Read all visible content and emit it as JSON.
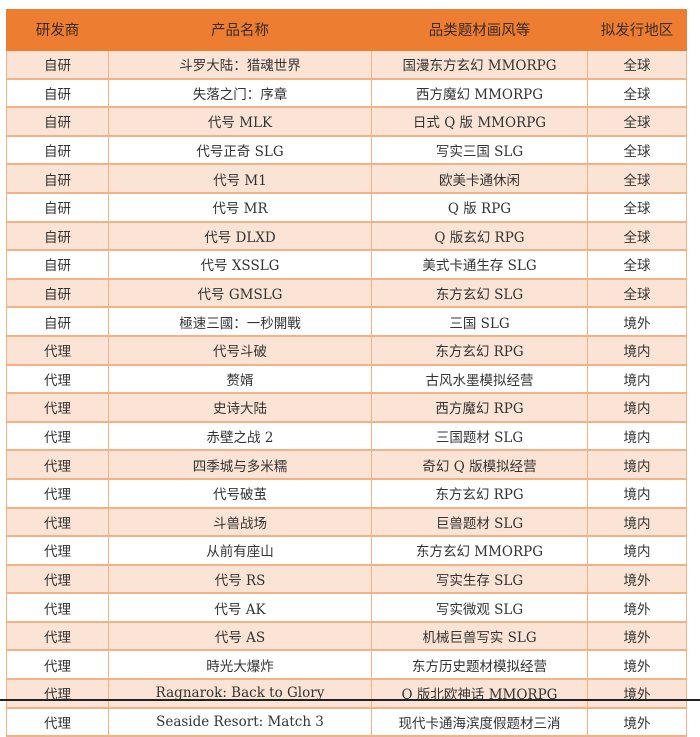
{
  "colors": {
    "header_bg": "#ED7D31",
    "odd_row_bg": "#FBE4D5",
    "border": "#F4B183"
  },
  "headers": [
    "研发商",
    "产品名称",
    "品类题材画风等",
    "拟发行地区"
  ],
  "rows": [
    [
      "自研",
      "斗罗大陆：猎魂世界",
      "国漫东方玄幻 MMORPG",
      "全球"
    ],
    [
      "自研",
      "失落之门：序章",
      "西方魔幻 MMORPG",
      "全球"
    ],
    [
      "自研",
      "代号 MLK",
      "日式 Q 版 MMORPG",
      "全球"
    ],
    [
      "自研",
      "代号正奇 SLG",
      "写实三国 SLG",
      "全球"
    ],
    [
      "自研",
      "代号 M1",
      "欧美卡通休闲",
      "全球"
    ],
    [
      "自研",
      "代号 MR",
      "Q 版 RPG",
      "全球"
    ],
    [
      "自研",
      "代号 DLXD",
      "Q 版玄幻 RPG",
      "全球"
    ],
    [
      "自研",
      "代号 XSSLG",
      "美式卡通生存 SLG",
      "全球"
    ],
    [
      "自研",
      "代号 GMSLG",
      "东方玄幻 SLG",
      "全球"
    ],
    [
      "自研",
      "極速三國：一秒開戰",
      "三国 SLG",
      "境外"
    ],
    [
      "代理",
      "代号斗破",
      "东方玄幻 RPG",
      "境内"
    ],
    [
      "代理",
      "赘婿",
      "古风水墨模拟经营",
      "境内"
    ],
    [
      "代理",
      "史诗大陆",
      "西方魔幻 RPG",
      "境内"
    ],
    [
      "代理",
      "赤壁之战 2",
      "三国题材 SLG",
      "境内"
    ],
    [
      "代理",
      "四季城与多米糯",
      "奇幻 Q 版模拟经营",
      "境内"
    ],
    [
      "代理",
      "代号破茧",
      "东方玄幻 RPG",
      "境内"
    ],
    [
      "代理",
      "斗兽战场",
      "巨兽题材 SLG",
      "境内"
    ],
    [
      "代理",
      "从前有座山",
      "东方玄幻 MMORPG",
      "境内"
    ],
    [
      "代理",
      "代号 RS",
      "写实生存 SLG",
      "境外"
    ],
    [
      "代理",
      "代号 AK",
      "写实微观 SLG",
      "境外"
    ],
    [
      "代理",
      "代号 AS",
      "机械巨兽写实 SLG",
      "境外"
    ],
    [
      "代理",
      "時光大爆炸",
      "东方历史题材模拟经营",
      "境外"
    ],
    [
      "代理",
      "Ragnarok: Back to Glory",
      "Q 版北欧神话 MMORPG",
      "境外"
    ],
    [
      "代理",
      "Seaside Resort: Match 3",
      "现代卡通海滨度假题材三消",
      "境外"
    ]
  ]
}
